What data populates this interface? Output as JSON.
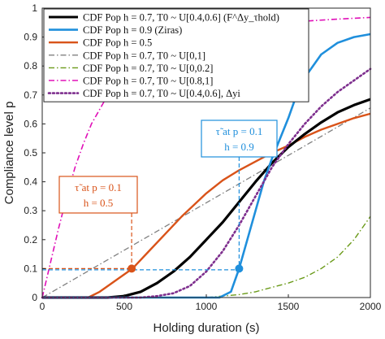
{
  "chart_data": {
    "type": "line",
    "title": "",
    "xlabel": "Holding duration (s)",
    "ylabel": "Compliance level p",
    "xlim": [
      0,
      2000
    ],
    "ylim": [
      0,
      1
    ],
    "xticks": [
      0,
      500,
      1000,
      1500,
      2000
    ],
    "yticks": [
      0,
      0.1,
      0.2,
      0.3,
      0.4,
      0.5,
      0.6,
      0.7,
      0.8,
      0.9,
      1
    ],
    "grid": false,
    "legend_position": "top-left",
    "series": [
      {
        "name": "CDF Pop h = 0.7, T0 ~ U[0.4,0.6] (F^Δy_τhold)",
        "color": "#000000",
        "style": "solid",
        "width": 3.2,
        "x": [
          0,
          400,
          500,
          600,
          700,
          800,
          900,
          1000,
          1100,
          1200,
          1300,
          1400,
          1500,
          1600,
          1700,
          1800,
          1900,
          2000
        ],
        "y": [
          0,
          0,
          0.005,
          0.02,
          0.05,
          0.09,
          0.14,
          0.2,
          0.26,
          0.33,
          0.4,
          0.465,
          0.52,
          0.565,
          0.605,
          0.64,
          0.665,
          0.685
        ]
      },
      {
        "name": "CDF Pop h = 0.9 (Ziras)",
        "color": "#1f8fdc",
        "style": "solid",
        "width": 2.6,
        "x": [
          0,
          1080,
          1150,
          1200,
          1250,
          1300,
          1350,
          1400,
          1450,
          1500,
          1550,
          1600,
          1650,
          1700,
          1800,
          1900,
          2000
        ],
        "y": [
          0,
          0,
          0.02,
          0.1,
          0.2,
          0.3,
          0.4,
          0.48,
          0.55,
          0.62,
          0.7,
          0.76,
          0.8,
          0.84,
          0.88,
          0.9,
          0.91
        ]
      },
      {
        "name": "CDF Pop h = 0.5",
        "color": "#d95319",
        "style": "solid",
        "width": 2.4,
        "x": [
          0,
          280,
          350,
          450,
          550,
          650,
          750,
          850,
          1000,
          1100,
          1200,
          1300,
          1400,
          1500,
          1600,
          1700,
          1800,
          1900,
          2000
        ],
        "y": [
          0,
          0,
          0.02,
          0.06,
          0.1,
          0.16,
          0.22,
          0.28,
          0.36,
          0.405,
          0.44,
          0.47,
          0.5,
          0.525,
          0.555,
          0.58,
          0.6,
          0.62,
          0.635
        ]
      },
      {
        "name": "CDF Pop h = 0.7, T0 ~ U[0,1]",
        "color": "#808080",
        "style": "dashdot",
        "width": 1.3,
        "x": [
          0,
          2000
        ],
        "y": [
          0,
          0.655
        ]
      },
      {
        "name": "CDF Pop h = 0.7, T0 ~ U[0,0.2]",
        "color": "#6a9a18",
        "style": "dashdot",
        "width": 1.4,
        "x": [
          0,
          1000,
          1100,
          1200,
          1300,
          1400,
          1500,
          1600,
          1700,
          1800,
          1900,
          2000
        ],
        "y": [
          0,
          0,
          0.005,
          0.01,
          0.02,
          0.035,
          0.05,
          0.07,
          0.1,
          0.14,
          0.2,
          0.28
        ]
      },
      {
        "name": "CDF Pop h = 0.7, T0 ~ U[0.8,1]",
        "color": "#e010b8",
        "style": "dashdot",
        "width": 1.6,
        "x": [
          0,
          50,
          100,
          150,
          200,
          250,
          300,
          400,
          500,
          600,
          700,
          800,
          1000,
          1200,
          1400,
          1600,
          1800,
          2000
        ],
        "y": [
          0,
          0.12,
          0.24,
          0.35,
          0.45,
          0.53,
          0.6,
          0.7,
          0.77,
          0.82,
          0.86,
          0.88,
          0.91,
          0.935,
          0.945,
          0.955,
          0.962,
          0.968
        ]
      },
      {
        "name": "CDF Pop h = 0.7, T0 ~ U[0.4,0.6], Δyi",
        "color": "#7e2f8e",
        "style": "dotted",
        "width": 2.6,
        "x": [
          0,
          600,
          700,
          800,
          900,
          1000,
          1100,
          1200,
          1300,
          1400,
          1500,
          1600,
          1700,
          1800,
          1900,
          2000
        ],
        "y": [
          0,
          0,
          0.005,
          0.015,
          0.04,
          0.09,
          0.16,
          0.25,
          0.35,
          0.45,
          0.53,
          0.6,
          0.66,
          0.71,
          0.75,
          0.79
        ]
      }
    ],
    "annotations": [
      {
        "line1": "τ̃ at p = 0.1",
        "line2": "h = 0.5",
        "color": "#d95319",
        "point": [
          545,
          0.1
        ]
      },
      {
        "line1": "τ̃ at p = 0.1",
        "line2": "h = 0.9",
        "color": "#1f8fdc",
        "point": [
          1200,
          0.1
        ]
      }
    ]
  }
}
